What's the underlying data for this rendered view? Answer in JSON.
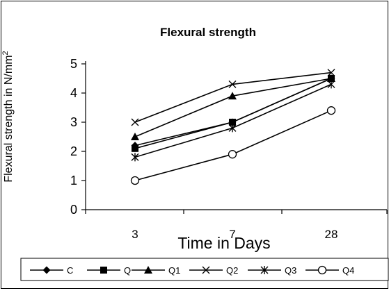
{
  "chart_data": {
    "type": "line",
    "title": "Flexural strength",
    "ylabel_main": "Flexural strength in N/mm",
    "ylabel_sup": "2",
    "xlabel": "Time in Days",
    "categories": [
      "3",
      "7",
      "28"
    ],
    "ylim": [
      0,
      5
    ],
    "yticks": [
      "0",
      "1",
      "2",
      "3",
      "4",
      "5"
    ],
    "grid": false,
    "legend_position": "bottom",
    "series": [
      {
        "name": "C",
        "marker": "diamond",
        "values": [
          2.2,
          3.0,
          4.5
        ]
      },
      {
        "name": "Q",
        "marker": "square",
        "values": [
          2.1,
          3.0,
          4.5
        ]
      },
      {
        "name": "Q1",
        "marker": "triangle",
        "values": [
          2.5,
          3.9,
          4.5
        ]
      },
      {
        "name": "Q2",
        "marker": "x",
        "values": [
          3.0,
          4.3,
          4.7
        ]
      },
      {
        "name": "Q3",
        "marker": "asterisk",
        "values": [
          1.8,
          2.8,
          4.3
        ]
      },
      {
        "name": "Q4",
        "marker": "circle",
        "values": [
          1.0,
          1.9,
          3.4
        ]
      }
    ],
    "colors": {
      "line": "#000000",
      "frame": "#000000"
    }
  }
}
